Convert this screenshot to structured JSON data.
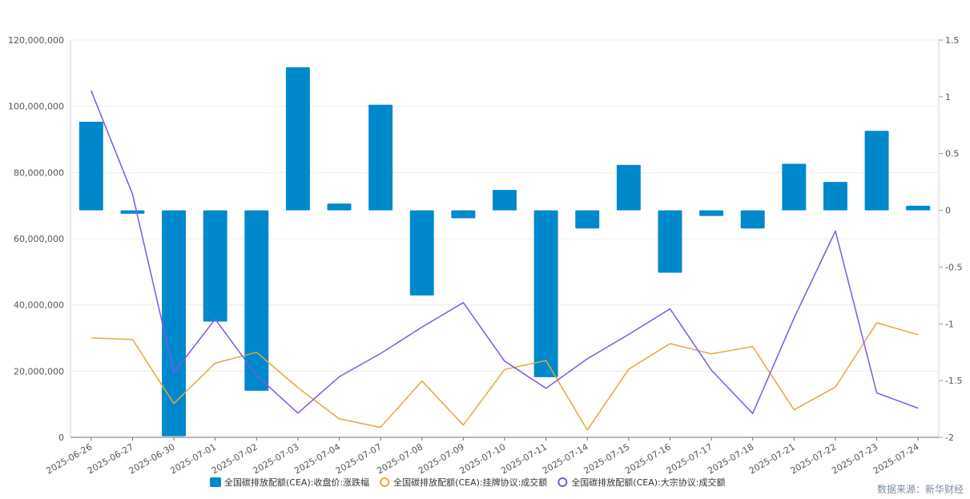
{
  "chart_data": {
    "type": "bar+line",
    "categories": [
      "2025-06-26",
      "2025-06-27",
      "2025-06-30",
      "2025-07-01",
      "2025-07-02",
      "2025-07-03",
      "2025-07-04",
      "2025-07-07",
      "2025-07-08",
      "2025-07-09",
      "2025-07-10",
      "2025-07-11",
      "2025-07-14",
      "2025-07-15",
      "2025-07-16",
      "2025-07-17",
      "2025-07-18",
      "2025-07-21",
      "2025-07-22",
      "2025-07-23",
      "2025-07-24"
    ],
    "left_axis": {
      "min": 0,
      "max": 120000000,
      "ticks": [
        "0",
        "20,000,000",
        "40,000,000",
        "60,000,000",
        "80,000,000",
        "100,000,000",
        "120,000,000"
      ]
    },
    "right_axis": {
      "min": -2,
      "max": 1.5,
      "ticks": [
        "-2",
        "-1.5",
        "-1",
        "-0.5",
        "0",
        "0.5",
        "1",
        "1.5"
      ]
    },
    "series": [
      {
        "name": "全国碳排放配额(CEA):收盘价:涨跌幅",
        "type": "bar",
        "axis": "right",
        "color": "#0088cc",
        "values": [
          0.78,
          -0.03,
          -1.99,
          -0.98,
          -1.59,
          1.26,
          0.06,
          0.93,
          -0.75,
          -0.07,
          0.18,
          -1.47,
          -0.16,
          0.4,
          -0.55,
          -0.05,
          -0.16,
          0.41,
          0.25,
          0.7,
          0.04
        ]
      },
      {
        "name": "全国碳排放配额(CEA):挂牌协议:成交额",
        "type": "line",
        "axis": "left",
        "color": "#e3a93b",
        "values": [
          30000000,
          29600000,
          10200000,
          22400000,
          25700000,
          15000000,
          5600000,
          3000000,
          17000000,
          3700000,
          20500000,
          23200000,
          2200000,
          20600000,
          28300000,
          25200000,
          27400000,
          8300000,
          15200000,
          34600000,
          31000000
        ]
      },
      {
        "name": "全国碳排放配额(CEA):大宗协议:成交额",
        "type": "line",
        "axis": "left",
        "color": "#8155e8",
        "values": [
          104700000,
          73500000,
          19500000,
          35700000,
          18700000,
          7300000,
          18300000,
          25300000,
          33300000,
          40700000,
          23000000,
          14800000,
          23700000,
          31100000,
          38800000,
          20300000,
          7200000,
          36000000,
          62300000,
          13400000,
          8800000
        ]
      }
    ]
  },
  "source_text": "数据来源：新华财经"
}
